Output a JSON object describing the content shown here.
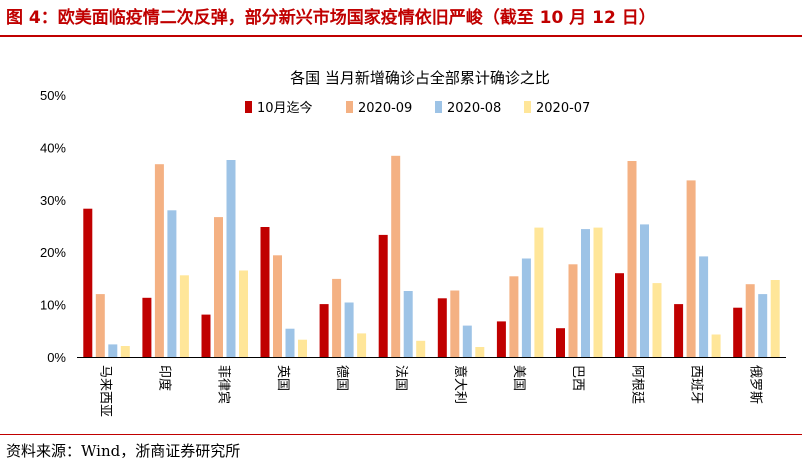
{
  "header": {
    "figure_title": "图 4：欧美面临疫情二次反弹，部分新兴市场国家疫情依旧严峻（截至 10 月 12 日）"
  },
  "footer": {
    "source": "资料来源：Wind，浙商证券研究所"
  },
  "chart_data": {
    "type": "bar",
    "title": "各国 当月新增确诊占全部累计确诊之比",
    "categories": [
      "马来西亚",
      "印度",
      "菲律宾",
      "英国",
      "德国",
      "法国",
      "意大利",
      "美国",
      "巴西",
      "阿根廷",
      "西班牙",
      "俄罗斯"
    ],
    "ylim": [
      0,
      50
    ],
    "yticks": [
      "0%",
      "10%",
      "20%",
      "30%",
      "40%",
      "50%"
    ],
    "grid": false,
    "legend": "top",
    "series": [
      {
        "name": "10月迄今",
        "color": "#c00000",
        "values": [
          28.3,
          11.3,
          8.1,
          24.8,
          10.1,
          23.3,
          11.2,
          6.8,
          5.5,
          16.0,
          10.1,
          9.4
        ]
      },
      {
        "name": "2020-09",
        "color": "#f4b183",
        "values": [
          12.0,
          36.8,
          26.7,
          19.4,
          14.9,
          38.4,
          12.7,
          15.4,
          17.7,
          37.4,
          33.7,
          13.9
        ]
      },
      {
        "name": "2020-08",
        "color": "#9dc3e6",
        "values": [
          2.4,
          28.0,
          37.6,
          5.4,
          10.4,
          12.6,
          6.0,
          18.8,
          24.4,
          25.3,
          19.2,
          12.0
        ]
      },
      {
        "name": "2020-07",
        "color": "#ffe699",
        "values": [
          2.1,
          15.6,
          16.5,
          3.3,
          4.5,
          3.1,
          1.9,
          24.7,
          24.7,
          14.1,
          4.3,
          14.7
        ]
      }
    ]
  }
}
